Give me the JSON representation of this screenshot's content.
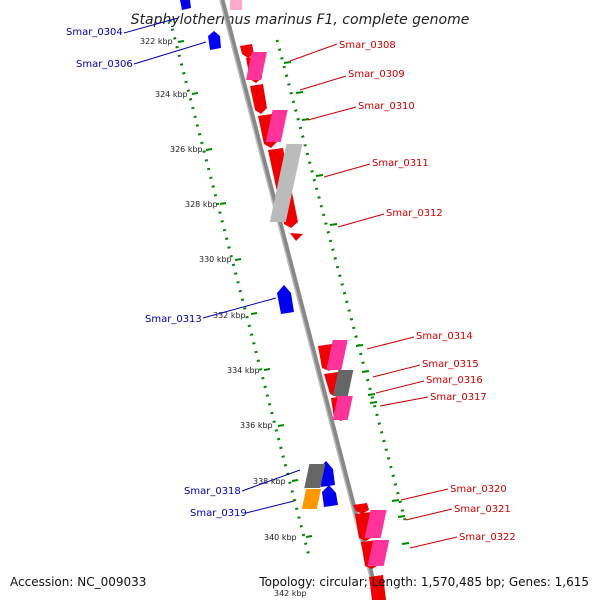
{
  "header": {
    "title": "Staphylothermus marinus F1, complete genome"
  },
  "footer": {
    "accession": "Accession: NC_009033",
    "summary": "Topology: circular; Length: 1,570,485 bp; Genes: 1,615"
  },
  "ticks": [
    {
      "label": "322 kbp"
    },
    {
      "label": "324 kbp"
    },
    {
      "label": "326 kbp"
    },
    {
      "label": "328 kbp"
    },
    {
      "label": "330 kbp"
    },
    {
      "label": "332 kbp"
    },
    {
      "label": "334 kbp"
    },
    {
      "label": "336 kbp"
    },
    {
      "label": "338 kbp"
    },
    {
      "label": "340 kbp"
    },
    {
      "label": "342 kbp"
    }
  ],
  "genes_left": [
    {
      "label": "Smar_0304"
    },
    {
      "label": "Smar_0306"
    },
    {
      "label": "Smar_0313"
    },
    {
      "label": "Smar_0318"
    },
    {
      "label": "Smar_0319"
    }
  ],
  "genes_right": [
    {
      "label": "Smar_0308"
    },
    {
      "label": "Smar_0309"
    },
    {
      "label": "Smar_0310"
    },
    {
      "label": "Smar_0311"
    },
    {
      "label": "Smar_0312"
    },
    {
      "label": "Smar_0314"
    },
    {
      "label": "Smar_0315"
    },
    {
      "label": "Smar_0316"
    },
    {
      "label": "Smar_0317"
    },
    {
      "label": "Smar_0320"
    },
    {
      "label": "Smar_0321"
    },
    {
      "label": "Smar_0322"
    }
  ],
  "colors": {
    "cds_forward": "#0000ee",
    "cds_reverse": "#ee0000",
    "feature_pink": "#ff3399",
    "feature_gray": "#bbbbbb",
    "feature_dark": "#666666",
    "feature_orange": "#ff9900",
    "tick_green": "#008800",
    "backbone": "#888888"
  }
}
